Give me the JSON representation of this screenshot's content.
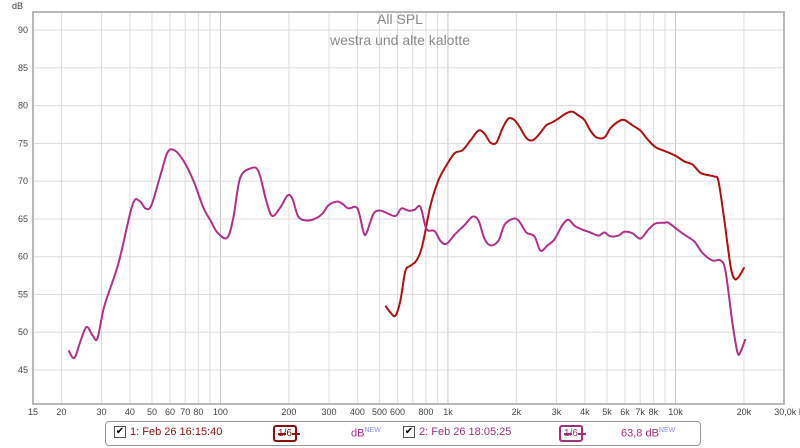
{
  "chart_data": {
    "type": "line",
    "title": "All SPL",
    "subtitle": "westra und alte kalotte",
    "ylabel": "dB",
    "xlabel": "Hz",
    "xscale": "log",
    "xlim": [
      15,
      30000
    ],
    "ylim": [
      40.5,
      92.4
    ],
    "yticks": [
      45,
      50,
      55,
      60,
      65,
      70,
      75,
      80,
      85,
      90
    ],
    "xticks": [
      {
        "v": 15,
        "l": "15"
      },
      {
        "v": 20,
        "l": "20"
      },
      {
        "v": 30,
        "l": "30"
      },
      {
        "v": 40,
        "l": "40"
      },
      {
        "v": 50,
        "l": "50"
      },
      {
        "v": 60,
        "l": "60"
      },
      {
        "v": 70,
        "l": "70"
      },
      {
        "v": 80,
        "l": "80"
      },
      {
        "v": 100,
        "l": "100"
      },
      {
        "v": 200,
        "l": "200"
      },
      {
        "v": 300,
        "l": "300"
      },
      {
        "v": 400,
        "l": "400"
      },
      {
        "v": 500,
        "l": "500"
      },
      {
        "v": 600,
        "l": "600"
      },
      {
        "v": 800,
        "l": "800"
      },
      {
        "v": 1000,
        "l": "1k"
      },
      {
        "v": 2000,
        "l": "2k"
      },
      {
        "v": 3000,
        "l": "3k"
      },
      {
        "v": 4000,
        "l": "4k"
      },
      {
        "v": 5000,
        "l": "5k"
      },
      {
        "v": 6000,
        "l": "6k"
      },
      {
        "v": 7000,
        "l": "7k"
      },
      {
        "v": 8000,
        "l": "8k"
      },
      {
        "v": 10000,
        "l": "10k"
      },
      {
        "v": 20000,
        "l": "20k"
      },
      {
        "v": 30000,
        "l": "30,0k Hz"
      }
    ],
    "grid": true,
    "series": [
      {
        "name": "1: Feb 26 16:15:40",
        "color": "#b01010",
        "x": [
          531,
          559,
          588,
          618,
          650,
          684,
          727,
          772,
          838,
          908,
          985,
          1069,
          1158,
          1256,
          1362,
          1446,
          1538,
          1633,
          1737,
          1845,
          1960,
          2083,
          2213,
          2351,
          2498,
          2708,
          2877,
          3061,
          3318,
          3525,
          3749,
          3981,
          4227,
          4498,
          4875,
          5176,
          5611,
          5966,
          6471,
          7017,
          7464,
          8091,
          8770,
          9311,
          10093,
          10965,
          11885,
          12882,
          13964,
          14825,
          15453,
          16406,
          17458,
          18155,
          18923,
          20090
        ],
        "y": [
          53.5,
          52.6,
          52.2,
          54.2,
          58.1,
          58.8,
          59.5,
          61.5,
          66.8,
          70.1,
          72.1,
          73.7,
          74.1,
          75.4,
          76.7,
          76.3,
          75.1,
          75.1,
          77.0,
          78.3,
          78.1,
          77.0,
          75.7,
          75.4,
          76.1,
          77.4,
          77.8,
          78.3,
          79.0,
          79.2,
          78.7,
          78.1,
          76.7,
          75.8,
          75.8,
          77.0,
          77.9,
          78.1,
          77.4,
          76.7,
          75.7,
          74.6,
          74.1,
          73.8,
          73.3,
          72.6,
          72.2,
          71.1,
          70.8,
          70.6,
          70.0,
          64.8,
          58.8,
          57.1,
          57.3,
          58.6
        ]
      },
      {
        "name": "2: Feb 26 18:05:25",
        "color": "#b0308a",
        "x": [
          21.5,
          22.8,
          24.3,
          25.8,
          27.4,
          28.8,
          30.9,
          35.6,
          41.0,
          44.0,
          46.8,
          49.7,
          54.5,
          58.5,
          62.8,
          68.8,
          76.0,
          84.1,
          90.4,
          97.0,
          107,
          114,
          122,
          136,
          147,
          159,
          169,
          184,
          197,
          207,
          220,
          239,
          259,
          281,
          298,
          324,
          344,
          365,
          400,
          425,
          438,
          471,
          505,
          537,
          588,
          625,
          670,
          713,
          757,
          804,
          873,
          927,
          985,
          1069,
          1183,
          1282,
          1362,
          1446,
          1538,
          1667,
          1771,
          1921,
          2042,
          2213,
          2399,
          2551,
          2737,
          2939,
          3186,
          3388,
          3597,
          3819,
          4227,
          4592,
          4875,
          5176,
          5611,
          5966,
          6471,
          7017,
          7609,
          8166,
          8954,
          9311,
          10093,
          10965,
          12125,
          13146,
          14545,
          15775,
          16596,
          17823,
          18750,
          19320,
          20300
        ],
        "y": [
          47.6,
          46.6,
          48.9,
          50.7,
          49.6,
          49.2,
          53.5,
          59.1,
          66.8,
          67.4,
          66.4,
          66.8,
          70.8,
          73.8,
          74.1,
          72.7,
          70.1,
          66.5,
          64.8,
          63.2,
          62.5,
          65.2,
          70.4,
          71.7,
          71.3,
          67.4,
          65.4,
          66.6,
          68.1,
          67.7,
          65.3,
          64.8,
          65.0,
          65.7,
          66.8,
          67.3,
          67.0,
          66.4,
          66.4,
          63.3,
          63.1,
          65.7,
          66.1,
          65.8,
          65.4,
          66.4,
          66.1,
          66.2,
          66.6,
          63.7,
          63.4,
          62.1,
          61.7,
          62.9,
          64.2,
          65.3,
          64.8,
          62.4,
          61.5,
          62.1,
          64.2,
          65.0,
          64.8,
          63.2,
          62.7,
          60.8,
          61.5,
          62.3,
          64.2,
          64.9,
          64.1,
          63.7,
          63.2,
          62.8,
          63.2,
          62.7,
          62.8,
          63.3,
          63.1,
          62.4,
          63.6,
          64.4,
          64.5,
          64.5,
          63.7,
          62.9,
          62.0,
          60.5,
          59.5,
          59.5,
          58.1,
          51.1,
          47.3,
          47.4,
          49.1
        ]
      }
    ]
  },
  "legend": {
    "items": [
      {
        "label": "1: Feb 26 16:15:40",
        "checked": "✔",
        "smoothing": "1/6",
        "value": "dB",
        "badge": "NEW"
      },
      {
        "label": "2: Feb 26 18:05:25",
        "checked": "✔",
        "smoothing": "1/6",
        "value": "63,8 dB",
        "badge": "NEW"
      }
    ]
  }
}
